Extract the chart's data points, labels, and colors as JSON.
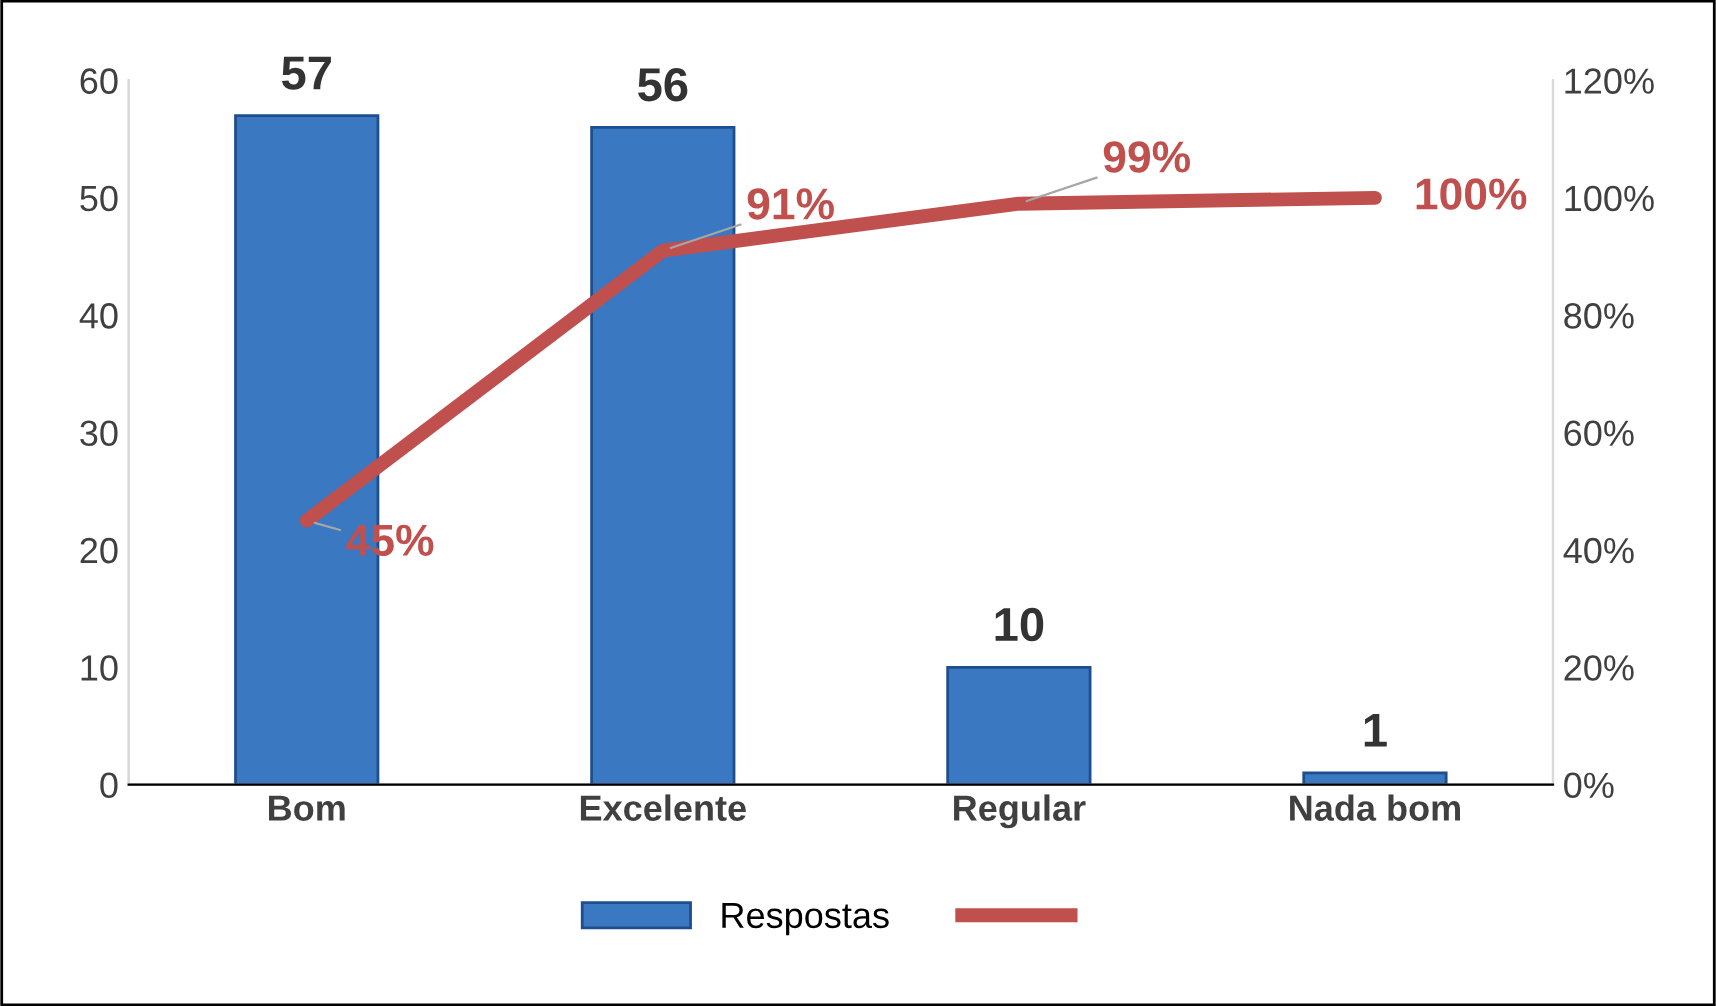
{
  "chart_data": {
    "type": "bar",
    "categories": [
      "Bom",
      "Excelente",
      "Regular",
      "Nada bom"
    ],
    "series": [
      {
        "name": "Respostas",
        "color": "#3a78c2",
        "values": [
          57,
          56,
          10,
          1
        ],
        "value_labels": [
          "57",
          "56",
          "10",
          "1"
        ]
      },
      {
        "type": "line",
        "axis": "y2",
        "color": "#c0504d",
        "values": [
          45,
          91,
          99,
          100
        ],
        "value_labels": [
          "45%",
          "91%",
          "99%",
          "100%"
        ]
      }
    ],
    "ylim": [
      0,
      60
    ],
    "yticks": [
      0,
      10,
      20,
      30,
      40,
      50,
      60
    ],
    "y2lim": [
      0,
      120
    ],
    "y2ticks": [
      {
        "value": 0,
        "label": "0%"
      },
      {
        "value": 20,
        "label": "20%"
      },
      {
        "value": 40,
        "label": "40%"
      },
      {
        "value": 60,
        "label": "60%"
      },
      {
        "value": 80,
        "label": "80%"
      },
      {
        "value": 100,
        "label": "100%"
      },
      {
        "value": 120,
        "label": "120%"
      }
    ],
    "grid": false,
    "legend": "bottom",
    "marker": "none"
  }
}
